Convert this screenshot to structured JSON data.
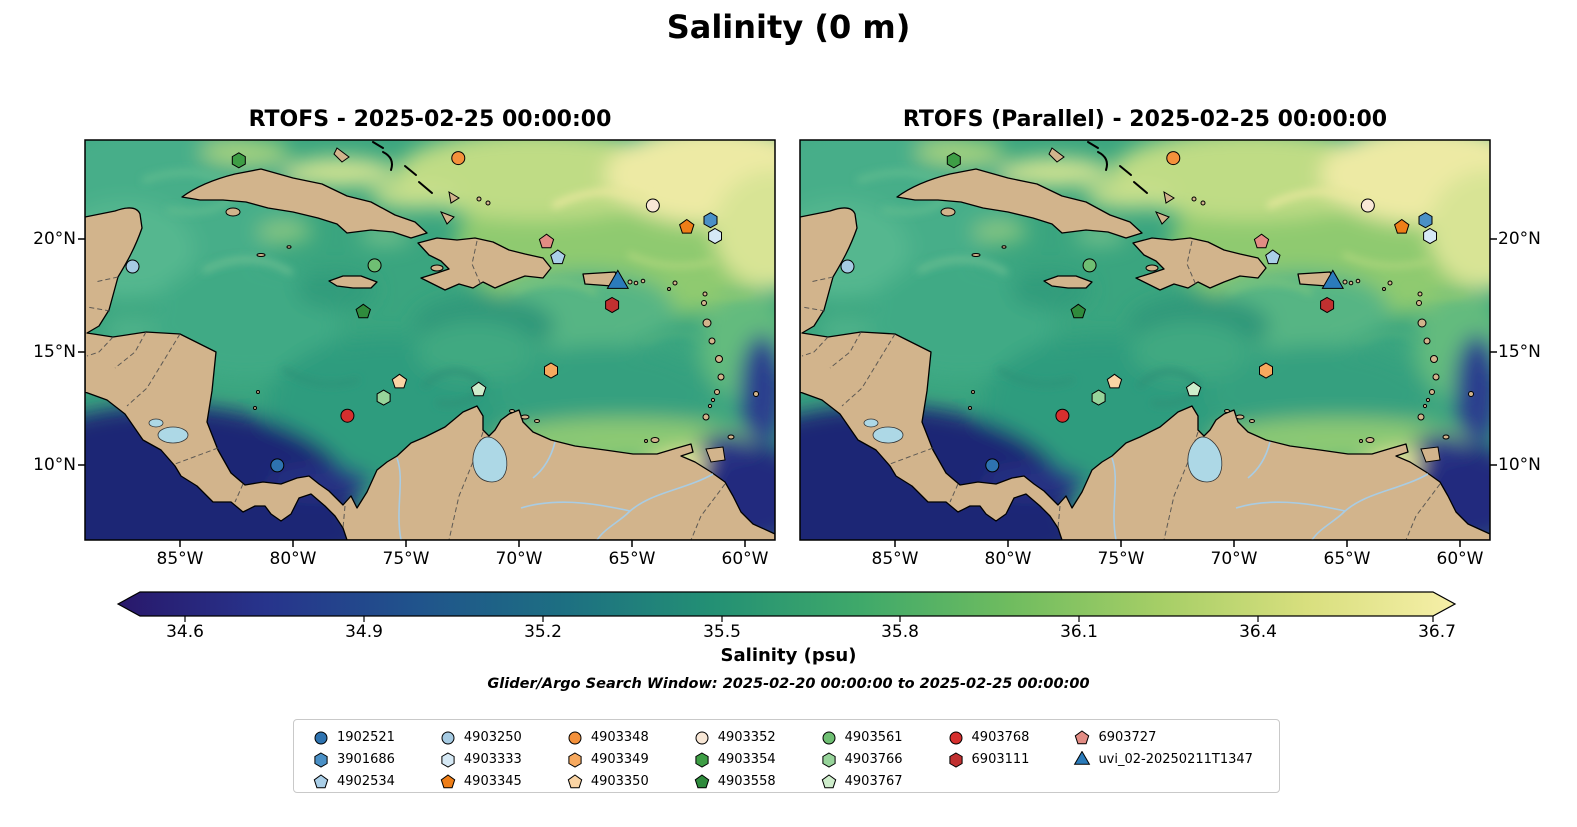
{
  "chart_data": {
    "type": "heatmap",
    "title": "Salinity (0 m)",
    "subplots": [
      {
        "title": "RTOFS - 2025-02-25 00:00:00"
      },
      {
        "title": "RTOFS (Parallel) - 2025-02-25 00:00:00"
      }
    ],
    "x_axis": {
      "ticks": [
        "85°W",
        "80°W",
        "75°W",
        "70°W",
        "65°W",
        "60°W"
      ],
      "range_deg": [
        -89.2,
        -58.7
      ]
    },
    "y_axis": {
      "ticks": [
        "20°N",
        "15°N",
        "10°N"
      ],
      "range_deg": [
        6.7,
        24.4
      ]
    },
    "colorbar": {
      "label": "Salinity (psu)",
      "ticks": [
        "34.6",
        "34.9",
        "35.2",
        "35.5",
        "35.8",
        "36.1",
        "36.4",
        "36.7"
      ],
      "value_range": [
        34.5,
        36.75
      ],
      "colors": [
        "#29186B",
        "#27348C",
        "#20538C",
        "#1D6F82",
        "#239074",
        "#3FA96A",
        "#6FBC5F",
        "#A5CE66",
        "#D8DF7E",
        "#F6EFA8"
      ]
    },
    "search_window": "Glider/Argo Search Window: 2025-02-20 00:00:00 to 2025-02-25 00:00:00",
    "markers": [
      {
        "id": "1902521",
        "shape": "circle",
        "color": "#2E73B0",
        "lon": -80.7,
        "lat": 10.0
      },
      {
        "id": "3901686",
        "shape": "hexagon",
        "color": "#4A90C6",
        "lon": -61.55,
        "lat": 20.85
      },
      {
        "id": "4902534",
        "shape": "pentagon",
        "color": "#AACFE8",
        "lon": -68.3,
        "lat": 19.2
      },
      {
        "id": "4903250",
        "shape": "circle",
        "color": "#A6CBE3",
        "lon": -87.1,
        "lat": 18.8
      },
      {
        "id": "4903333",
        "shape": "hexagon",
        "color": "#D6E9F5",
        "lon": -61.35,
        "lat": 20.15
      },
      {
        "id": "4903345",
        "shape": "pentagon",
        "color": "#EE7E18",
        "lon": -62.6,
        "lat": 20.55
      },
      {
        "id": "4903348",
        "shape": "circle",
        "color": "#F4913B",
        "lon": -72.7,
        "lat": 23.6
      },
      {
        "id": "4903349",
        "shape": "hexagon",
        "color": "#F7A95E",
        "lon": -68.6,
        "lat": 14.2
      },
      {
        "id": "4903350",
        "shape": "pentagon",
        "color": "#FAD4A4",
        "lon": -75.3,
        "lat": 13.7
      },
      {
        "id": "4903352",
        "shape": "circle",
        "color": "#F8E7D6",
        "lon": -64.1,
        "lat": 21.5
      },
      {
        "id": "4903354",
        "shape": "hexagon",
        "color": "#3E9E45",
        "lon": -82.4,
        "lat": 23.5
      },
      {
        "id": "4903558",
        "shape": "pentagon",
        "color": "#2F8B3C",
        "lon": -76.9,
        "lat": 16.8
      },
      {
        "id": "4903561",
        "shape": "circle",
        "color": "#6FBF73",
        "lon": -76.4,
        "lat": 18.85
      },
      {
        "id": "4903766",
        "shape": "hexagon",
        "color": "#97D49A",
        "lon": -76.0,
        "lat": 13.0
      },
      {
        "id": "4903767",
        "shape": "pentagon",
        "color": "#CEEDCB",
        "lon": -71.8,
        "lat": 13.35
      },
      {
        "id": "4903768",
        "shape": "circle",
        "color": "#D62F2E",
        "lon": -77.6,
        "lat": 12.2
      },
      {
        "id": "6903111",
        "shape": "hexagon",
        "color": "#C03030",
        "lon": -65.9,
        "lat": 17.1
      },
      {
        "id": "6903727",
        "shape": "pentagon",
        "color": "#E28C84",
        "lon": -68.8,
        "lat": 19.9
      },
      {
        "id": "uvi_02-20250211T1347",
        "shape": "triangle",
        "color": "#2B7BBA",
        "lon": -65.65,
        "lat": 18.1
      }
    ]
  },
  "legend": {
    "columns": [
      [
        "1902521",
        "3901686",
        "4902534"
      ],
      [
        "4903250",
        "4903333",
        "4903345"
      ],
      [
        "4903348",
        "4903349",
        "4903350"
      ],
      [
        "4903352",
        "4903354",
        "4903558"
      ],
      [
        "4903561",
        "4903766",
        "4903767"
      ],
      [
        "4903768",
        "6903111"
      ],
      [
        "6903727",
        "uvi_02-20250211T1347"
      ]
    ]
  }
}
